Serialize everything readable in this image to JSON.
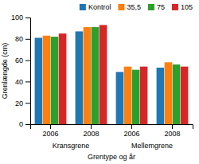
{
  "chart_data": {
    "type": "bar",
    "categories": [
      "2006",
      "2008",
      "2006",
      "2008"
    ],
    "series": [
      {
        "name": "Kontrol",
        "values": [
          81,
          87,
          49,
          53
        ]
      },
      {
        "name": "35,5",
        "values": [
          83,
          91,
          54,
          58
        ]
      },
      {
        "name": "75",
        "values": [
          82,
          91,
          51,
          56
        ]
      },
      {
        "name": "105",
        "values": [
          85,
          93,
          54,
          54
        ]
      }
    ],
    "annotations": [
      "Kransgrene",
      "Mellemgrene"
    ],
    "xlabel": "Grentype og år",
    "ylabel": "Grenlængde (cm)",
    "ylim": [
      0,
      100
    ],
    "yticks": [
      0,
      20,
      40,
      60,
      80,
      100
    ],
    "grid": false,
    "legend": "upper right"
  }
}
